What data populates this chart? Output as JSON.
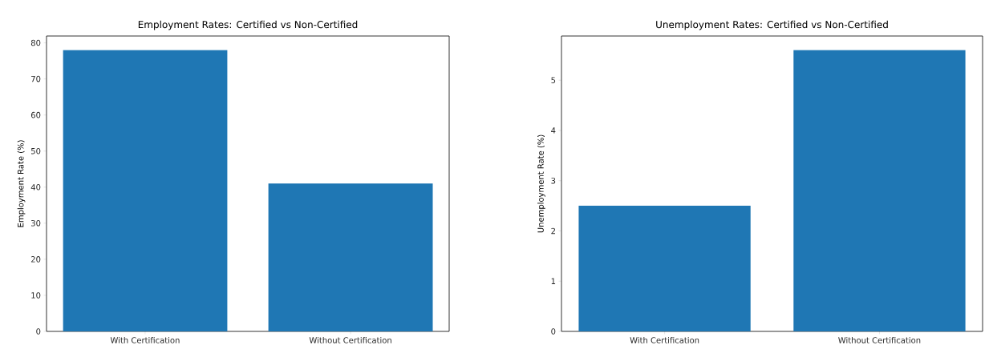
{
  "chart_data": [
    {
      "type": "bar",
      "title": "Employment Rates: Certified vs Non-Certified",
      "ylabel": "Employment Rate (%)",
      "categories": [
        "With Certification",
        "Without Certification"
      ],
      "values": [
        78,
        41
      ],
      "color": "#1f77b4",
      "ylim": [
        0,
        81.9
      ],
      "yticks": [
        0,
        10,
        20,
        30,
        40,
        50,
        60,
        70,
        80
      ]
    },
    {
      "type": "bar",
      "title": "Unemployment Rates: Certified vs Non-Certified",
      "ylabel": "Unemployment Rate (%)",
      "categories": [
        "With Certification",
        "Without Certification"
      ],
      "values": [
        2.5,
        5.6
      ],
      "color": "#1f77b4",
      "ylim": [
        0,
        5.88
      ],
      "yticks": [
        0,
        1,
        2,
        3,
        4,
        5
      ]
    }
  ]
}
